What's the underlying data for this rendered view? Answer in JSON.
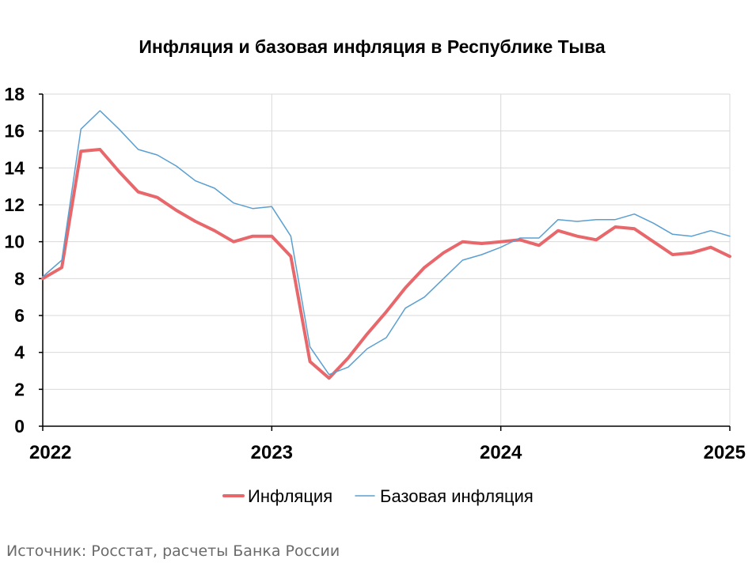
{
  "chart_data": {
    "type": "line",
    "title": "Инфляция и базовая инфляция в Республике Тыва",
    "xlabel": "",
    "ylabel": "",
    "ylim": [
      0,
      18
    ],
    "yticks": [
      "0",
      "2",
      "4",
      "6",
      "8",
      "10",
      "12",
      "14",
      "16",
      "18"
    ],
    "xticks": [
      "2022",
      "2023",
      "2024",
      "2025"
    ],
    "xlim": [
      "2022-01",
      "2025-01"
    ],
    "grid": true,
    "legend_position": "bottom",
    "x": [
      "2022-01",
      "2022-02",
      "2022-03",
      "2022-04",
      "2022-05",
      "2022-06",
      "2022-07",
      "2022-08",
      "2022-09",
      "2022-10",
      "2022-11",
      "2022-12",
      "2023-01",
      "2023-02",
      "2023-03",
      "2023-04",
      "2023-05",
      "2023-06",
      "2023-07",
      "2023-08",
      "2023-09",
      "2023-10",
      "2023-11",
      "2023-12",
      "2024-01",
      "2024-02",
      "2024-03",
      "2024-04",
      "2024-05",
      "2024-06",
      "2024-07",
      "2024-08",
      "2024-09",
      "2024-10",
      "2024-11",
      "2024-12",
      "2025-01"
    ],
    "series": [
      {
        "name": "Инфляция",
        "color": "#e8676b",
        "values": [
          8.0,
          8.6,
          14.9,
          15.0,
          13.8,
          12.7,
          12.4,
          11.7,
          11.1,
          10.6,
          10.0,
          10.3,
          10.3,
          9.2,
          3.5,
          2.6,
          3.7,
          5.0,
          6.2,
          7.5,
          8.6,
          9.4,
          10.0,
          9.9,
          10.0,
          10.1,
          9.8,
          10.6,
          10.3,
          10.1,
          10.8,
          10.7,
          10.0,
          9.3,
          9.4,
          9.7,
          9.2
        ]
      },
      {
        "name": "Базовая инфляция",
        "color": "#5a9fd1",
        "values": [
          8.1,
          9.0,
          16.1,
          17.1,
          16.1,
          15.0,
          14.7,
          14.1,
          13.3,
          12.9,
          12.1,
          11.8,
          11.9,
          10.3,
          4.3,
          2.8,
          3.2,
          4.2,
          4.8,
          6.4,
          7.0,
          8.0,
          9.0,
          9.3,
          9.7,
          10.2,
          10.2,
          11.2,
          11.1,
          11.2,
          11.2,
          11.5,
          11.0,
          10.4,
          10.3,
          10.6,
          10.3
        ]
      }
    ]
  },
  "source": "Источник: Росстат, расчеты Банка России"
}
